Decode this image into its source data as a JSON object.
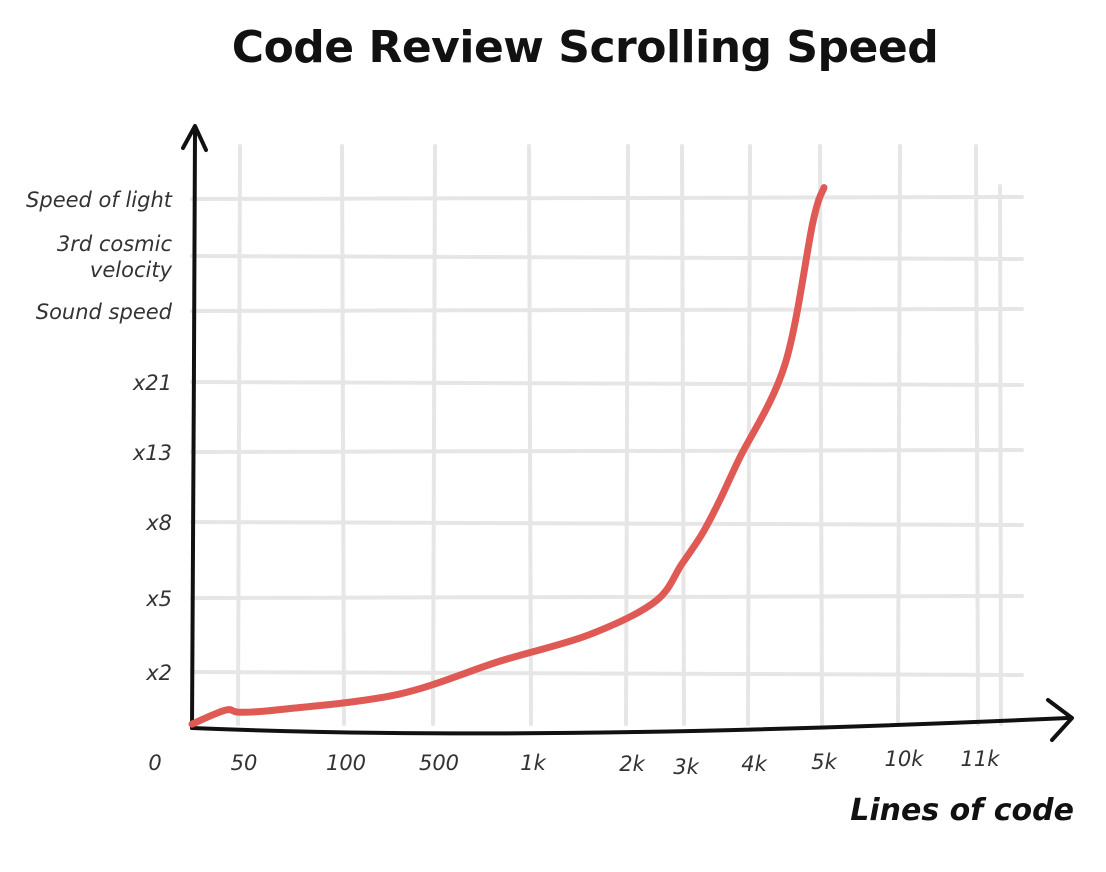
{
  "chart_data": {
    "type": "line",
    "title": "Code Review Scrolling Speed",
    "xlabel": "Lines of code",
    "ylabel": "",
    "x_ticks": [
      "50",
      "100",
      "500",
      "1k",
      "2k",
      "3k",
      "4k",
      "5k",
      "10k",
      "11k"
    ],
    "origin_label": "0",
    "y_ticks": [
      [
        "x2"
      ],
      [
        "x5"
      ],
      [
        "x8"
      ],
      [
        "x13"
      ],
      [
        "x21"
      ],
      [
        "Sound speed"
      ],
      [
        "3rd cosmic",
        "velocity"
      ],
      [
        "Speed of light"
      ]
    ],
    "grid": true,
    "series": [
      {
        "color": "#e05a55",
        "x": [
          0,
          0.7,
          1.0,
          1.4,
          2.6,
          3.7,
          4.6,
          5.5,
          6.0,
          6.3,
          6.55,
          6.84,
          7.5,
          7.9,
          8.05
        ],
        "y": [
          0.07,
          0.32,
          0.28,
          0.33,
          0.6,
          1.15,
          1.5,
          1.95,
          2.45,
          2.85,
          3.3,
          3.9,
          5.25,
          7.6,
          8.2
        ]
      }
    ]
  }
}
